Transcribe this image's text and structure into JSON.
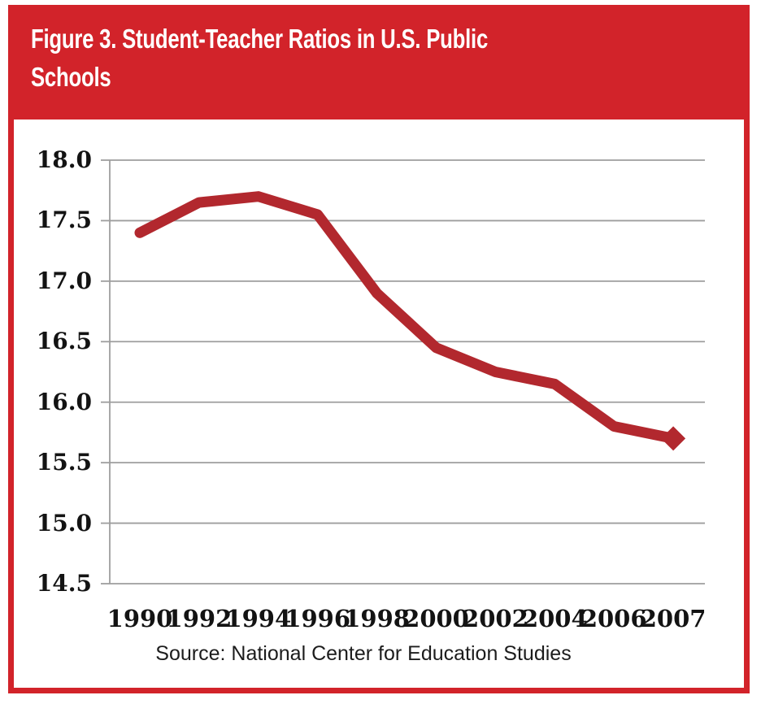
{
  "figure": {
    "title_line1": "Figure 3. Student-Teacher Ratios in U.S. Public",
    "title_line2": "Schools",
    "source": "Source: National Center for Education Studies"
  },
  "colors": {
    "banner": "#D2232A",
    "border": "#D2232A",
    "line": "#B2282E",
    "grid": "#9E9E9E",
    "label": "#131313",
    "source": "#1c1c1c"
  },
  "chart_data": {
    "type": "line",
    "title": "Figure 3. Student-Teacher Ratios in U.S. Public Schools",
    "categories": [
      "1990",
      "1992",
      "1994",
      "1996",
      "1998",
      "2000",
      "2002",
      "2004",
      "2006",
      "2007"
    ],
    "series": [
      {
        "name": "Student-teacher ratio in U.S. public schools",
        "values": [
          17.4,
          17.65,
          17.7,
          17.55,
          16.9,
          16.45,
          16.25,
          16.15,
          15.8,
          15.7
        ]
      }
    ],
    "xlabel": "",
    "ylabel": "",
    "ylim": [
      14.5,
      18.0
    ],
    "yticks": [
      18.0,
      17.5,
      17.0,
      16.5,
      16.0,
      15.5,
      15.0,
      14.5
    ],
    "ytick_labels": [
      "18.0",
      "17.5",
      "17.0",
      "16.5",
      "16.0",
      "15.5",
      "15.0",
      "14.5"
    ],
    "grid": true,
    "legend_position": "none",
    "line_width": 13,
    "end_marker": "diamond",
    "source": "Source: National Center for Education Studies"
  }
}
